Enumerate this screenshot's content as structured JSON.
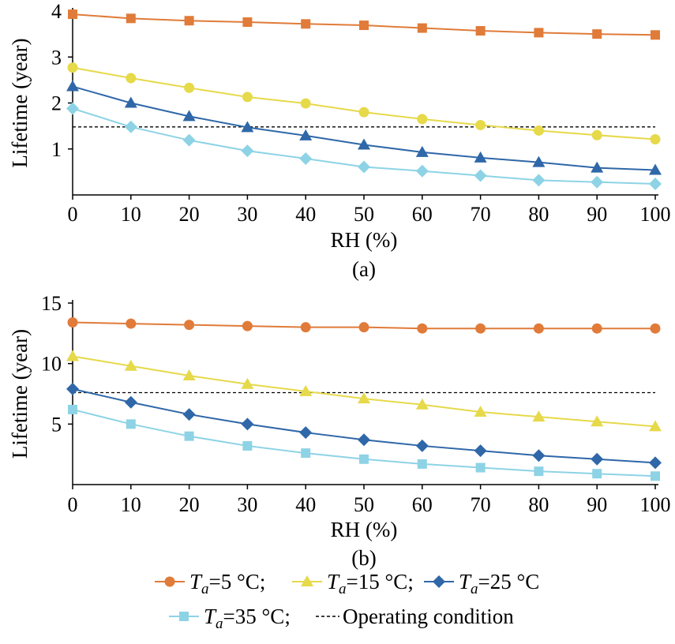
{
  "chart_data": [
    {
      "type": "line",
      "panel_label": "(a)",
      "xlabel": "RH (%)",
      "ylabel": "Lifetime (year)",
      "x": [
        0,
        10,
        20,
        30,
        40,
        50,
        60,
        70,
        80,
        90,
        100
      ],
      "x_ticks": [
        "0",
        "10",
        "20",
        "30",
        "40",
        "50",
        "60",
        "70",
        "80",
        "90",
        "100"
      ],
      "xlim": [
        0,
        100
      ],
      "ylim": [
        0,
        4
      ],
      "y_ticks": [
        "1",
        "2",
        "3",
        "4"
      ],
      "grid": false,
      "series": [
        {
          "key": "ta5",
          "marker": "square",
          "color": "#E07B39",
          "values": [
            3.93,
            3.84,
            3.79,
            3.76,
            3.72,
            3.69,
            3.63,
            3.57,
            3.53,
            3.5,
            3.48
          ]
        },
        {
          "key": "ta15",
          "marker": "circle",
          "color": "#E6D94A",
          "values": [
            2.77,
            2.54,
            2.33,
            2.13,
            1.99,
            1.8,
            1.65,
            1.52,
            1.4,
            1.3,
            1.21
          ]
        },
        {
          "key": "ta25",
          "marker": "triangle",
          "color": "#2F67A8",
          "values": [
            2.36,
            2.0,
            1.71,
            1.47,
            1.29,
            1.09,
            0.93,
            0.81,
            0.71,
            0.59,
            0.54
          ]
        },
        {
          "key": "ta35",
          "marker": "diamond",
          "color": "#8DD3E5",
          "values": [
            1.88,
            1.48,
            1.19,
            0.96,
            0.79,
            0.61,
            0.52,
            0.42,
            0.32,
            0.28,
            0.24
          ]
        }
      ],
      "operating_condition": 1.48
    },
    {
      "type": "line",
      "panel_label": "(b)",
      "xlabel": "RH (%)",
      "ylabel": "Lifetime (year)",
      "x": [
        0,
        10,
        20,
        30,
        40,
        50,
        60,
        70,
        80,
        90,
        100
      ],
      "x_ticks": [
        "0",
        "10",
        "20",
        "30",
        "40",
        "50",
        "60",
        "70",
        "80",
        "90",
        "100"
      ],
      "xlim": [
        0,
        100
      ],
      "ylim": [
        0,
        15
      ],
      "y_ticks": [
        "5",
        "10",
        "15"
      ],
      "grid": false,
      "series": [
        {
          "key": "ta5",
          "marker": "circle",
          "color": "#E07B39",
          "values": [
            13.4,
            13.3,
            13.2,
            13.1,
            13.0,
            13.0,
            12.9,
            12.9,
            12.9,
            12.9,
            12.9
          ]
        },
        {
          "key": "ta15",
          "marker": "triangle",
          "color": "#E6D94A",
          "values": [
            10.6,
            9.8,
            9.0,
            8.3,
            7.7,
            7.1,
            6.6,
            6.0,
            5.6,
            5.2,
            4.8
          ]
        },
        {
          "key": "ta25",
          "marker": "diamond",
          "color": "#2F67A8",
          "values": [
            7.9,
            6.8,
            5.8,
            5.0,
            4.3,
            3.7,
            3.2,
            2.8,
            2.4,
            2.1,
            1.8
          ]
        },
        {
          "key": "ta35",
          "marker": "square",
          "color": "#8DD3E5",
          "values": [
            6.2,
            5.0,
            4.0,
            3.2,
            2.6,
            2.1,
            1.7,
            1.4,
            1.1,
            0.9,
            0.7
          ]
        }
      ],
      "operating_condition": 7.6
    }
  ],
  "legend": {
    "placement": "bottom",
    "items": [
      {
        "var": "T",
        "sub": "a",
        "text": "=5 °C;",
        "marker": "circle",
        "color": "#E07B39"
      },
      {
        "var": "T",
        "sub": "a",
        "text": "=15 °C;",
        "marker": "triangle",
        "color": "#E6D94A"
      },
      {
        "var": "T",
        "sub": "a",
        "text": "=25 °C",
        "marker": "diamond",
        "color": "#2F67A8"
      },
      {
        "var": "T",
        "sub": "a",
        "text": "=35 °C;",
        "marker": "square",
        "color": "#8DD3E5"
      },
      {
        "text": "Operating condition",
        "marker": "dashed-line",
        "color": "#000000"
      }
    ]
  }
}
